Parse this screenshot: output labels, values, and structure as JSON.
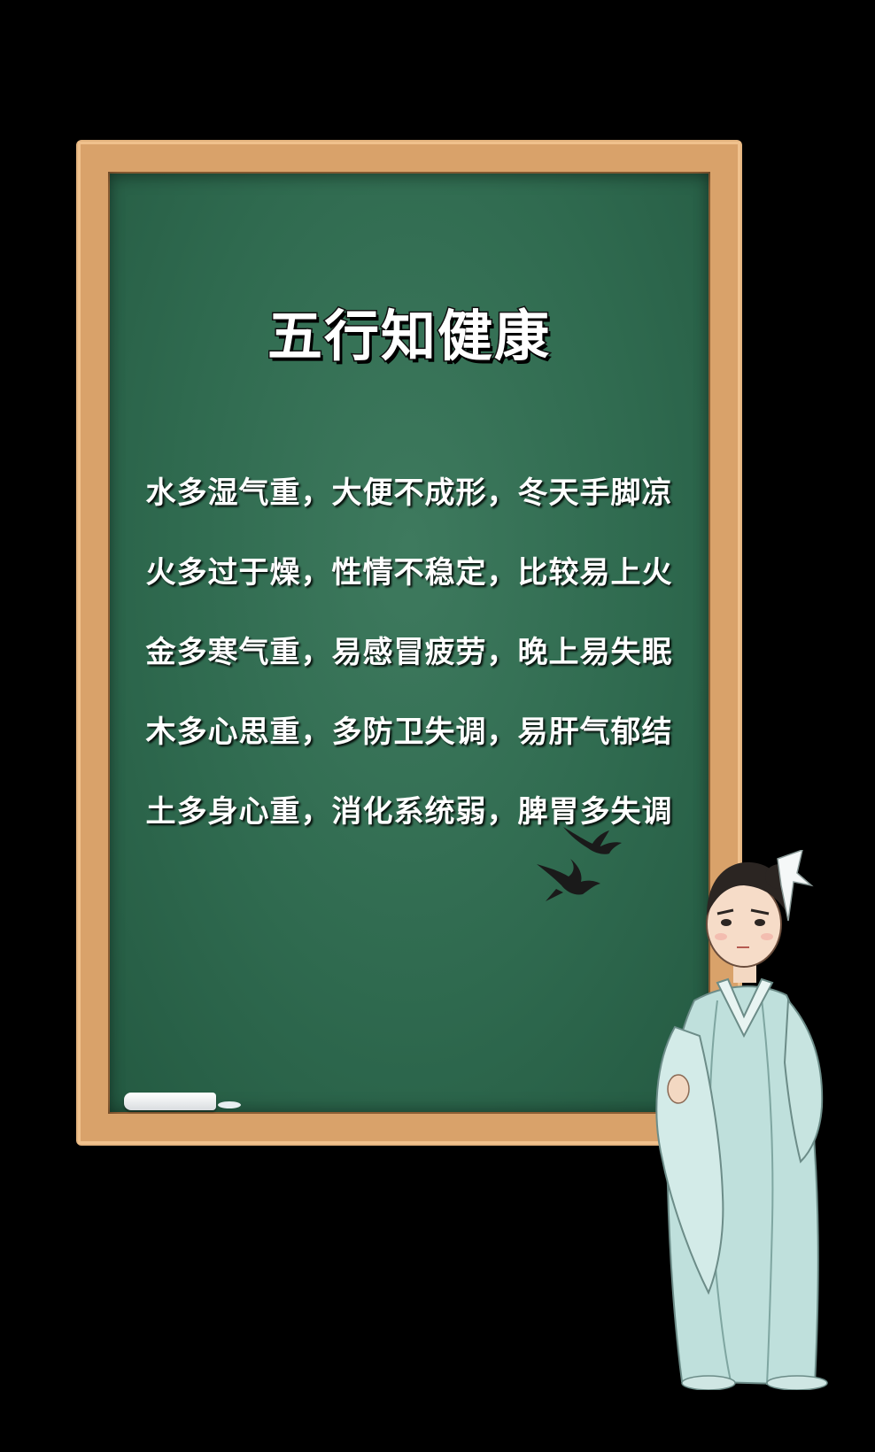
{
  "title": "五行知健康",
  "lines": [
    "水多湿气重，大便不成形，冬天手脚凉",
    "火多过于燥，性情不稳定，比较易上火",
    "金多寒气重，易感冒疲劳，晚上易失眠",
    "木多心思重，多防卫失调，易肝气郁结",
    "土多身心重，消化系统弱，脾胃多失调"
  ],
  "colors": {
    "background": "#000000",
    "chalkboard": "#2f6a4f",
    "frame": "#d9a26a",
    "text": "#ffffff",
    "robe": "#bfe0dc"
  },
  "icons": {
    "birds": "swallow-icon",
    "figure": "scholar-figure",
    "chalk": "chalk-icon"
  }
}
